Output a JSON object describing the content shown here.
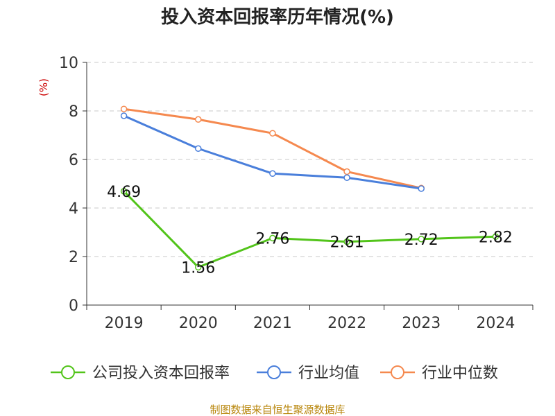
{
  "chart_data": {
    "type": "line",
    "title": "投入资本回报率历年情况(%)",
    "ylabel": "(%)",
    "xlabel": "",
    "categories": [
      "2019",
      "2020",
      "2021",
      "2022",
      "2023",
      "2024"
    ],
    "ylim": [
      0,
      10
    ],
    "yticks": [
      0,
      2,
      4,
      6,
      8,
      10
    ],
    "grid": true,
    "legend_position": "bottom",
    "series": [
      {
        "name": "公司投入资本回报率",
        "color": "#52c41a",
        "values": [
          4.69,
          1.56,
          2.76,
          2.61,
          2.72,
          2.82
        ],
        "labels": [
          "4.69",
          "1.56",
          "2.76",
          "2.61",
          "2.72",
          "2.82"
        ]
      },
      {
        "name": "行业均值",
        "color": "#4a7fdb",
        "values": [
          7.8,
          6.45,
          5.42,
          5.25,
          4.8,
          null
        ]
      },
      {
        "name": "行业中位数",
        "color": "#f5894f",
        "values": [
          8.08,
          7.65,
          7.08,
          5.5,
          4.82,
          null
        ]
      }
    ],
    "source": "制图数据来自恒生聚源数据库"
  }
}
